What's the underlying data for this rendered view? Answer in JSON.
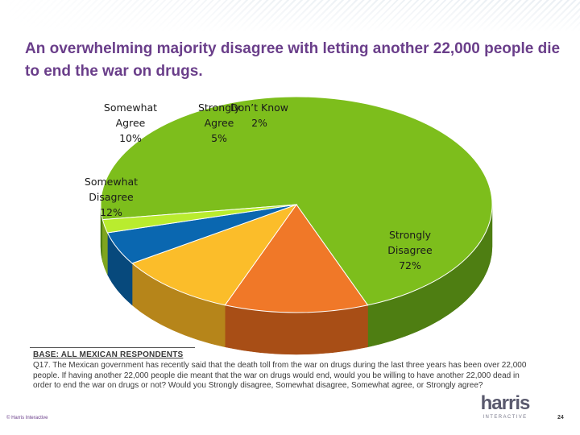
{
  "slide": {
    "title": "An overwhelming majority disagree with letting another 22,000 people die to end the war on drugs."
  },
  "chart_data": {
    "type": "pie",
    "title": "An overwhelming majority disagree with letting another 22,000 people die to end the war on drugs.",
    "unit": "%",
    "slices": [
      {
        "name": "Strongly Disagree",
        "value": 72,
        "label_lines": [
          "Strongly",
          "Disagree",
          "72%"
        ],
        "color": "#7dbe1c",
        "side_color": "#4e7e12"
      },
      {
        "name": "Somewhat Disagree",
        "value": 12,
        "label_lines": [
          "Somewhat",
          "Disagree",
          "12%"
        ],
        "color": "#f07828",
        "side_color": "#a84e16"
      },
      {
        "name": "Somewhat Agree",
        "value": 10,
        "label_lines": [
          "Somewhat",
          "Agree",
          "10%"
        ],
        "color": "#fbbd2a",
        "side_color": "#b6851a"
      },
      {
        "name": "Strongly Agree",
        "value": 5,
        "label_lines": [
          "Strongly",
          "Agree",
          "5%"
        ],
        "color": "#0a67b0",
        "side_color": "#07497c"
      },
      {
        "name": "Don't Know",
        "value": 2,
        "label_lines": [
          "Don’t Know",
          "2%"
        ],
        "color": "#b9ec2e",
        "side_color": "#7fa51e"
      }
    ]
  },
  "base": {
    "title": "BASE: ALL MEXICAN RESPONDENTS",
    "question": "Q17. The Mexican government has recently said that the death toll from the war on drugs during the last three years has been over 22,000 people. If having another 22,000 people die meant that the war on drugs would end, would you be willing to have another 22,000 dead in order to end the war on drugs or not? Would you Strongly disagree, Somewhat disagree, Somewhat agree, or Strongly agree?"
  },
  "footer": {
    "copyright": "© Harris Interactive",
    "logo_word": "harris",
    "logo_sub": "INTERACTIVE",
    "page_number": "24"
  }
}
